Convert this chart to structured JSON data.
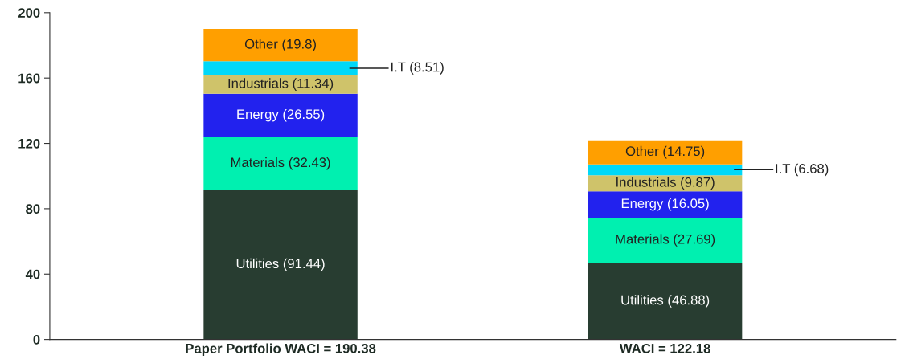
{
  "chart_data": {
    "type": "bar",
    "stacked": true,
    "categories": [
      "Paper Portfolio WACI = 190.38",
      "WACI = 122.18"
    ],
    "series": [
      {
        "color": "#283d31",
        "values": [
          91.44,
          46.88
        ],
        "value_labels": [
          "Utilities (91.44)",
          "Utilities (46.88)"
        ]
      },
      {
        "color": "#00f0b0",
        "values": [
          32.43,
          27.69
        ],
        "value_labels": [
          "Materials (32.43)",
          "Materials (27.69)"
        ]
      },
      {
        "color": "#2222ee",
        "values": [
          26.55,
          16.05
        ],
        "value_labels": [
          "Energy (26.55)",
          "Energy (16.05)"
        ]
      },
      {
        "color": "#cfc36a",
        "values": [
          11.34,
          9.87
        ],
        "value_labels": [
          "Industrials (11.34)",
          "Industrials (9.87)"
        ]
      },
      {
        "color": "#00d8f8",
        "values": [
          8.51,
          6.68
        ],
        "value_labels": [
          "I.T (8.51)",
          "I.T (6.68)"
        ]
      },
      {
        "color": "#ff9f00",
        "values": [
          19.8,
          14.75
        ],
        "value_labels": [
          "Other (19.8)",
          "Other (14.75)"
        ]
      }
    ],
    "ylim": [
      0,
      200
    ],
    "yticks": [
      0,
      40,
      80,
      120,
      160,
      200
    ],
    "grid": false,
    "legend": false
  }
}
